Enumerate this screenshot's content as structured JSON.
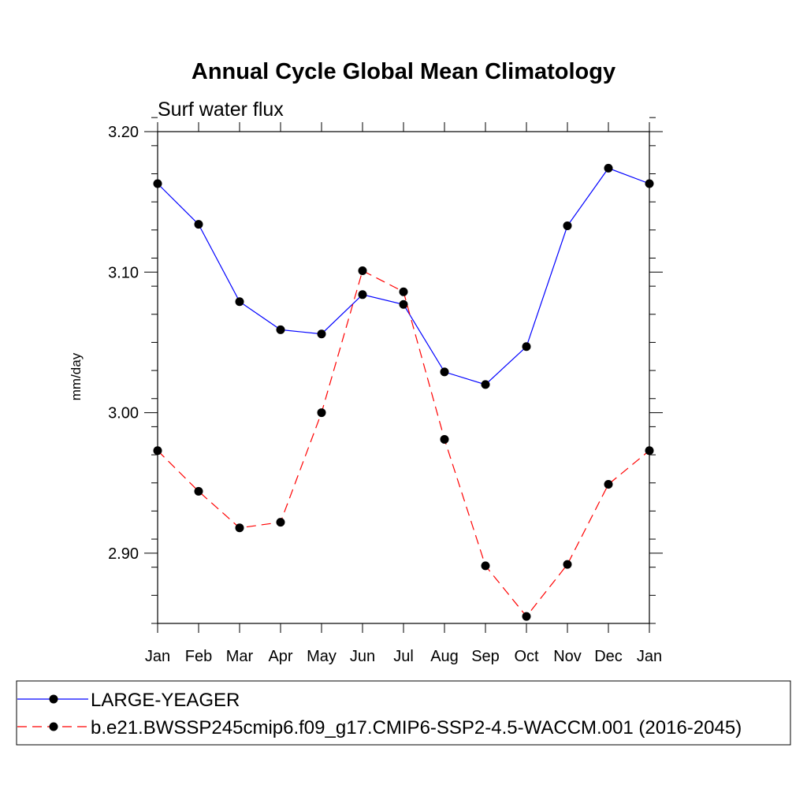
{
  "chart_data": {
    "type": "line",
    "title": "Annual Cycle Global Mean Climatology",
    "subtitle": "Surf water flux",
    "xlabel": "",
    "ylabel": "mm/day",
    "categories": [
      "Jan",
      "Feb",
      "Mar",
      "Apr",
      "May",
      "Jun",
      "Jul",
      "Aug",
      "Sep",
      "Oct",
      "Nov",
      "Dec",
      "Jan"
    ],
    "ylim": [
      2.85,
      3.2
    ],
    "yticks": [
      2.9,
      3.0,
      3.1,
      3.2
    ],
    "ytick_labels": [
      "2.90",
      "3.00",
      "3.10",
      "3.20"
    ],
    "grid": false,
    "legend_position": "bottom",
    "series": [
      {
        "name": "LARGE-YEAGER",
        "color": "#0000ff",
        "line_style": "solid",
        "marker": "filled-circle",
        "values": [
          3.163,
          3.134,
          3.079,
          3.059,
          3.056,
          3.084,
          3.077,
          3.029,
          3.02,
          3.047,
          3.133,
          3.174,
          3.163
        ]
      },
      {
        "name": "b.e21.BWSSP245cmip6.f09_g17.CMIP6-SSP2-4.5-WACCM.001 (2016-2045)",
        "color": "#ff0000",
        "line_style": "dashed",
        "marker": "filled-circle",
        "values": [
          2.973,
          2.944,
          2.918,
          2.922,
          3.0,
          3.101,
          3.086,
          2.981,
          2.891,
          2.855,
          2.892,
          2.949,
          2.973
        ]
      }
    ]
  }
}
